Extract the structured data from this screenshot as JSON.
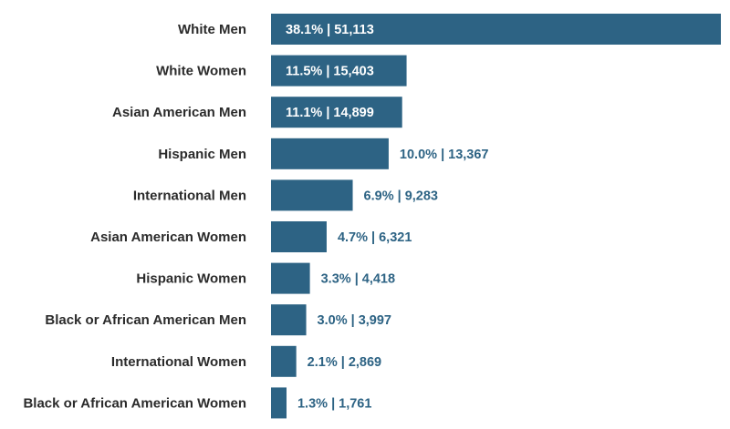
{
  "chart_data": {
    "type": "bar",
    "orientation": "horizontal",
    "categories": [
      "White Men",
      "White Women",
      "Asian American Men",
      "Hispanic Men",
      "International Men",
      "Asian American Women",
      "Hispanic Women",
      "Black or African American Men",
      "International Women",
      "Black or African American Women"
    ],
    "series": [
      {
        "percent_labels": [
          "38.1%",
          "11.5%",
          "11.1%",
          "10.0%",
          "6.9%",
          "4.7%",
          "3.3%",
          "3.0%",
          "2.1%",
          "1.3%"
        ],
        "values": [
          51113,
          15403,
          14899,
          13367,
          9283,
          6321,
          4418,
          3997,
          2869,
          1761
        ]
      }
    ],
    "data_labels": [
      "38.1%  |  51,113",
      "11.5%  |  15,403",
      "11.1%  |  14,899",
      "10.0%  |  13,367",
      "6.9%  |  9,283",
      "4.7%  |  6,321",
      "3.3%  |  4,418",
      "3.0%  |  3,997",
      "2.1%  |  2,869",
      "1.3%  |  1,761"
    ],
    "xlim": [
      0,
      51113
    ],
    "grid": false,
    "legend": "none",
    "colors": {
      "bar": "#2d6384",
      "label_inside": "#ffffff",
      "label_outside": "#2d6384",
      "category_text": "#2b2b2b"
    }
  }
}
